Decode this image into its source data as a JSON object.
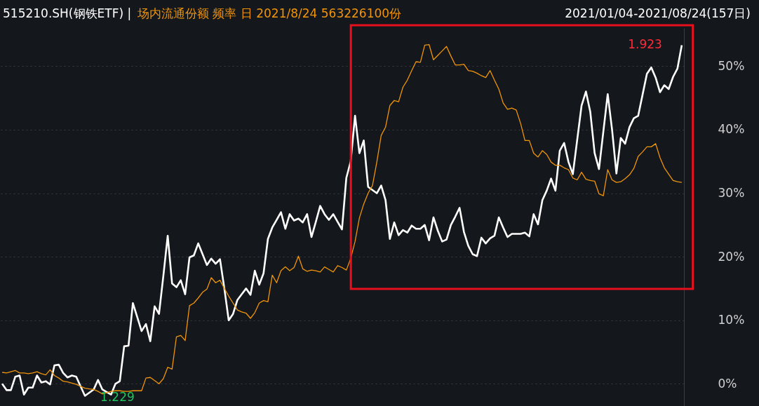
{
  "chart_data": {
    "type": "line",
    "title": "515210.SH(钢铁ETF) |",
    "subtitle": "场内流通份额 频率 日 2021/8/24 563226100份",
    "annotations": [
      "2021/01/04-2021/08/24(157日)",
      "1.229",
      "1.923"
    ],
    "categories": [
      null,
      null,
      null,
      null,
      null,
      null,
      null,
      null,
      null,
      null,
      null,
      null,
      null,
      null,
      null,
      null,
      null,
      null,
      null,
      null,
      null,
      null,
      null,
      null,
      null,
      null,
      null,
      null,
      null,
      null,
      null,
      null,
      null,
      null,
      null,
      null,
      null,
      null,
      null,
      null,
      null,
      null,
      null,
      null,
      null,
      null,
      null,
      null,
      null,
      null,
      null,
      null,
      null,
      null,
      null,
      null,
      null,
      null,
      null,
      null,
      null,
      null,
      null,
      null,
      null,
      null,
      null,
      null,
      null,
      null,
      null,
      null,
      null,
      null,
      null,
      null,
      null,
      null,
      null,
      null,
      null,
      null,
      null,
      null,
      null,
      null,
      null,
      null,
      null,
      null,
      null,
      null,
      null,
      null,
      null,
      null,
      null,
      null,
      null,
      null,
      null,
      null,
      null,
      null,
      null,
      null,
      null,
      null,
      null,
      null,
      null,
      null,
      null,
      null,
      null,
      null,
      null,
      null,
      null,
      null,
      null,
      null,
      null,
      null,
      null,
      null,
      null,
      null,
      null,
      null,
      null,
      null,
      null,
      null,
      null,
      null,
      null,
      null,
      null,
      null,
      null,
      null,
      null,
      null,
      null,
      null,
      null,
      null,
      null,
      null,
      null,
      null,
      null,
      null,
      null,
      null,
      null
    ],
    "ylim": [
      -3.5,
      56
    ],
    "yticks": [
      {
        "value": 0,
        "label": "0%"
      },
      {
        "value": 10,
        "label": "10%"
      },
      {
        "value": 20,
        "label": "20%"
      },
      {
        "value": 30,
        "label": "30%"
      },
      {
        "value": 40,
        "label": "40%"
      },
      {
        "value": 50,
        "label": "50%"
      }
    ],
    "tick_labels": "y",
    "grid": "y",
    "series": [
      {
        "color": "#ffffff",
        "values": [
          0,
          -1,
          -1,
          1.1,
          1.3,
          -1.7,
          -0.6,
          -0.6,
          1.3,
          0.2,
          0.4,
          -0.1,
          2.9,
          3,
          1.7,
          1,
          1.3,
          1.1,
          -0.4,
          -1.9,
          -1.4,
          -0.9,
          0.6,
          -0.9,
          -1.3,
          -1.7,
          0,
          0.4,
          5.9,
          6,
          12.7,
          10.5,
          8.3,
          9.4,
          6.7,
          12.2,
          11,
          17,
          23.3,
          15.8,
          15.2,
          16.3,
          14.1,
          19.9,
          20.2,
          22.1,
          20.4,
          18.7,
          19.7,
          18.9,
          19.6,
          15,
          10,
          11,
          13.2,
          14.1,
          15,
          14,
          17.8,
          15.6,
          17.4,
          22.8,
          24.6,
          25.8,
          27,
          24.4,
          26.7,
          25.7,
          26,
          25.4,
          26.7,
          23.1,
          25.5,
          28,
          26.7,
          25.8,
          26.7,
          25.5,
          24.3,
          32.4,
          35,
          42.2,
          36.3,
          38.3,
          31,
          30.5,
          30,
          31.2,
          28.9,
          22.8,
          25.4,
          23.4,
          24.2,
          23.8,
          24.9,
          24.4,
          24.4,
          25,
          22.6,
          26.2,
          24.1,
          22.4,
          22.7,
          25,
          26.3,
          27.7,
          23.9,
          21.7,
          20.4,
          20.1,
          23,
          22.1,
          22.9,
          23.3,
          26.2,
          24.6,
          23.1,
          23.6,
          23.6,
          23.6,
          23.8,
          23.2,
          26.7,
          25.1,
          28.9,
          30.4,
          32.3,
          30.4,
          36.7,
          37.9,
          34.9,
          33,
          38.4,
          43.8,
          46,
          42.8,
          36.3,
          33.8,
          39.7,
          45.6,
          40,
          33.1,
          38.7,
          37.8,
          40.4,
          41.8,
          42.2,
          45.5,
          48.8,
          49.8,
          48.2,
          45.9,
          47,
          46.4,
          48.3,
          49.6,
          53.3
        ]
      },
      {
        "color": "#f0940a",
        "values": [
          1.8,
          1.7,
          1.9,
          2.1,
          1.7,
          1.7,
          1.6,
          1.7,
          1.9,
          1.6,
          1.4,
          2.2,
          1.3,
          0.9,
          0.4,
          0.3,
          0.1,
          -0.1,
          -0.4,
          -0.7,
          -0.8,
          -0.9,
          -1.2,
          -1.6,
          -1.4,
          -1.2,
          -1.1,
          -1.1,
          -1.2,
          -1.2,
          -1.1,
          -1.1,
          -1.1,
          0.9,
          1,
          0.5,
          0,
          0.8,
          2.6,
          2.3,
          7.4,
          7.6,
          6.8,
          12.3,
          12.7,
          13.5,
          14.4,
          14.9,
          16.7,
          15.9,
          16.3,
          15,
          13.8,
          12.7,
          11.6,
          11.3,
          11.1,
          10.3,
          11.2,
          12.7,
          13.1,
          12.9,
          17.1,
          15.9,
          17.8,
          18.4,
          17.8,
          18.3,
          20.1,
          18.1,
          17.7,
          17.9,
          17.8,
          17.6,
          18.4,
          18,
          17.6,
          18.6,
          18.3,
          17.9,
          19.7,
          22.4,
          26.1,
          28.3,
          30,
          31.2,
          34.9,
          39.1,
          40.4,
          43.8,
          44.6,
          44.4,
          46.7,
          47.8,
          49.3,
          50.7,
          50.6,
          53.3,
          53.4,
          51,
          51.7,
          52.4,
          53.1,
          51.6,
          50.2,
          50.2,
          50.3,
          49.3,
          49.2,
          48.9,
          48.5,
          48.2,
          49.3,
          47.8,
          46.4,
          44.2,
          43.2,
          43.4,
          43.1,
          41,
          38.3,
          38.3,
          36.3,
          35.7,
          36.7,
          36.1,
          34.9,
          34.4,
          34.4,
          34,
          33.7,
          32.4,
          32.1,
          33.3,
          32.2,
          32,
          31.9,
          29.9,
          29.6,
          33.7,
          32.1,
          31.7,
          31.8,
          32.3,
          32.9,
          33.9,
          35.8,
          36.5,
          37.3,
          37.3,
          37.8,
          35.6,
          34,
          33,
          32,
          31.8,
          31.7
        ]
      }
    ]
  }
}
